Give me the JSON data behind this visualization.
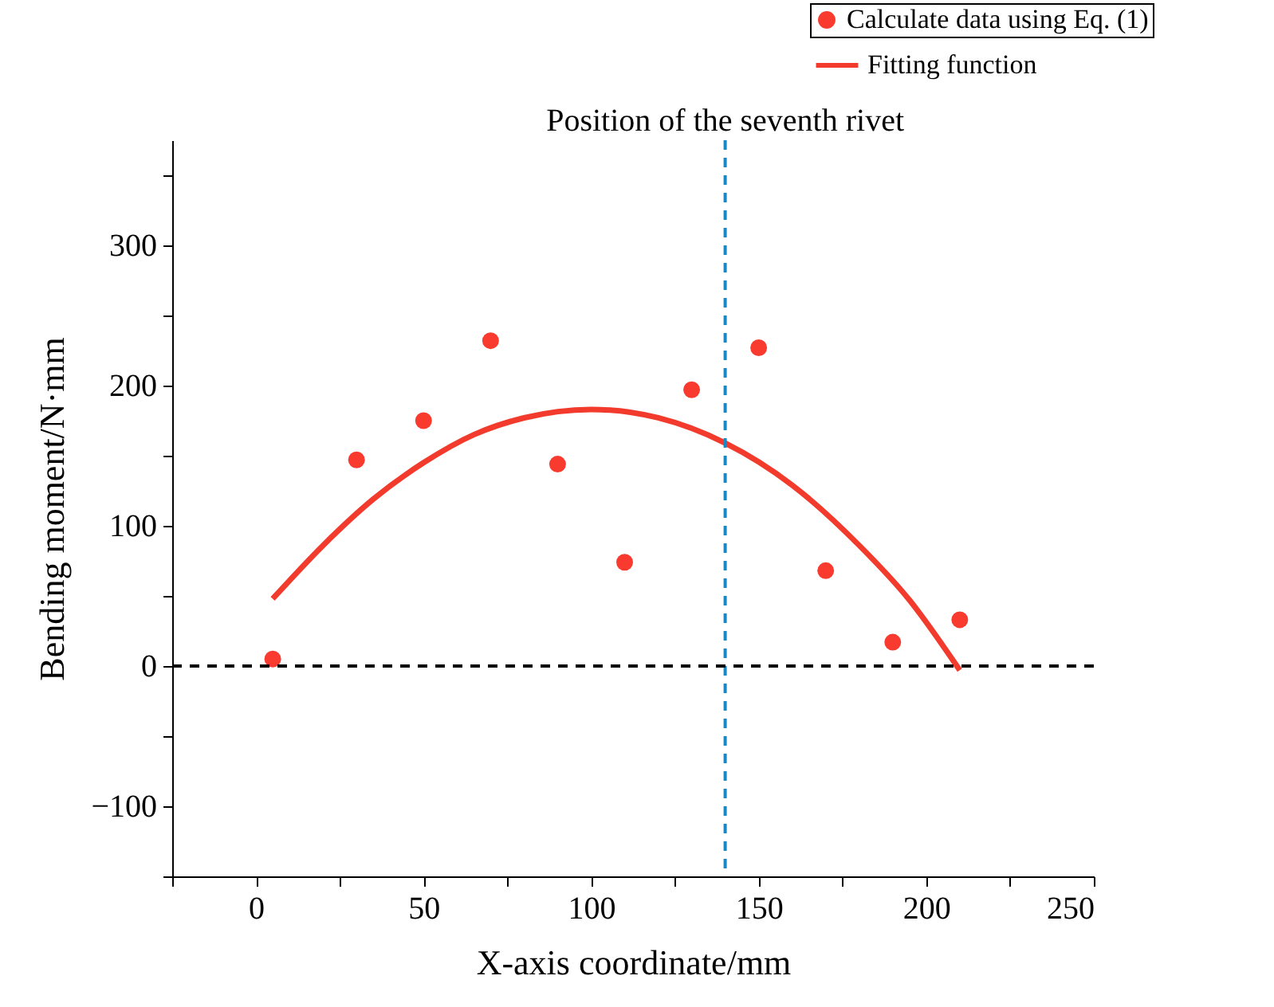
{
  "chart_data": {
    "type": "scatter",
    "xlabel": "X-axis coordinate/mm",
    "ylabel": "Bending moment/N·mm",
    "xlim": [
      -25,
      250
    ],
    "xticks": [
      {
        "value": -25,
        "label": null
      },
      0,
      {
        "value": 25,
        "label": null
      },
      50,
      {
        "value": 75,
        "label": null
      },
      100,
      {
        "value": 125,
        "label": null
      },
      150,
      {
        "value": 175,
        "label": null
      },
      200,
      {
        "value": 225,
        "label": null
      },
      250
    ],
    "ylim": [
      -150,
      375
    ],
    "yticks": [
      {
        "value": -150,
        "label": null
      },
      -100,
      {
        "value": -50,
        "label": null
      },
      0,
      {
        "value": 50,
        "label": null
      },
      100,
      {
        "value": 150,
        "label": null
      },
      200,
      {
        "value": 250,
        "label": null
      },
      300,
      {
        "value": 350,
        "label": null
      }
    ],
    "grid": false,
    "legend": "top right",
    "series": [
      {
        "name": "Calculate data using Eq. (1)",
        "color": "#f83a2f",
        "marker": "circle",
        "x": [
          5,
          30,
          50,
          70,
          90,
          110,
          130,
          150,
          170,
          190,
          210
        ],
        "values": [
          5,
          147,
          175,
          232,
          144,
          74,
          197,
          227,
          68,
          17,
          33
        ]
      },
      {
        "type": "line",
        "name": "Fitting function",
        "color": "#f23b2d",
        "line_style": "solid",
        "x": [
          5,
          20,
          35,
          50,
          65,
          80,
          100,
          120,
          140,
          160,
          180,
          195,
          210
        ],
        "values": [
          48,
          86,
          119,
          145,
          165,
          177,
          183,
          177,
          159,
          129,
          86,
          47,
          -3
        ]
      }
    ],
    "ref_lines": [
      {
        "axis": "x",
        "value": 140,
        "label": "Position of the seventh rivet",
        "color": "#1a88c4",
        "line_style": "dashed"
      },
      {
        "axis": "y",
        "value": 0,
        "color": "#000000",
        "line_style": "dashed"
      }
    ]
  }
}
